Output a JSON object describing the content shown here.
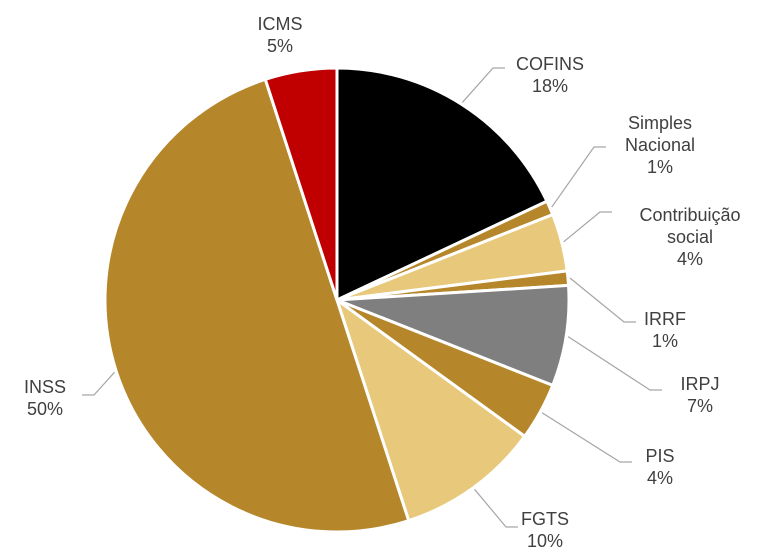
{
  "chart_data": {
    "type": "pie",
    "categories": [
      "COFINS",
      "Simples Nacional",
      "Contribuição social",
      "IRRF",
      "IRPJ",
      "PIS",
      "FGTS",
      "INSS",
      "ICMS"
    ],
    "values": [
      18,
      1,
      4,
      1,
      7,
      4,
      10,
      50,
      5
    ],
    "value_labels": [
      "18%",
      "1%",
      "4%",
      "1%",
      "7%",
      "4%",
      "10%",
      "50%",
      "5%"
    ],
    "colors": [
      "#000000",
      "#b5862a",
      "#e8c87a",
      "#b5862a",
      "#7f7f7f",
      "#b5862a",
      "#e8c87a",
      "#b5862a",
      "#c00000"
    ]
  }
}
